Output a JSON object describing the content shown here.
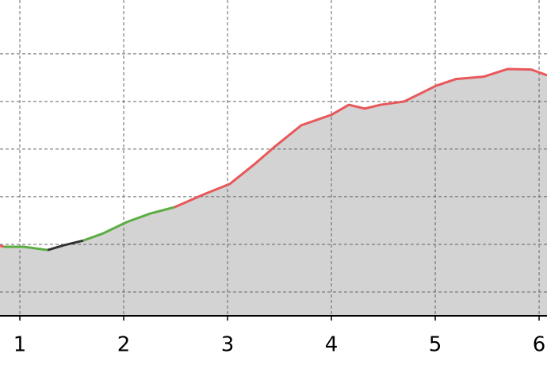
{
  "chart_data": {
    "type": "line",
    "xlim": [
      0.809,
      6.076
    ],
    "ylim": [
      0.5,
      7.13
    ],
    "xticks": [
      1,
      2,
      3,
      4,
      5,
      6
    ],
    "yticks": [
      1,
      2,
      3,
      4,
      5,
      6
    ],
    "grid": true,
    "fill_color": "#d3d3d3",
    "series": [
      {
        "color": "#e8585a",
        "x": [
          0.809,
          0.847
        ],
        "values": [
          1.97,
          1.95
        ]
      },
      {
        "color": "#5cad44",
        "x": [
          0.847,
          1.038,
          1.267
        ],
        "values": [
          1.95,
          1.95,
          1.88
        ]
      },
      {
        "color": "#333333",
        "x": [
          1.267,
          1.42,
          1.611
        ],
        "values": [
          1.88,
          1.98,
          2.08
        ]
      },
      {
        "color": "#5cad44",
        "x": [
          1.611,
          1.802,
          2.031,
          2.26,
          2.489
        ],
        "values": [
          2.08,
          2.23,
          2.47,
          2.65,
          2.78
        ]
      },
      {
        "color": "#e8585a",
        "x": [
          2.489,
          2.794,
          3.023,
          3.252,
          3.443,
          3.71,
          4.0,
          4.168,
          4.321,
          4.473,
          4.702,
          5.008,
          5.198,
          5.466,
          5.695,
          5.924,
          6.076
        ],
        "values": [
          2.78,
          3.07,
          3.27,
          3.67,
          4.03,
          4.5,
          4.72,
          4.93,
          4.85,
          4.93,
          5.0,
          5.33,
          5.47,
          5.52,
          5.68,
          5.67,
          5.55
        ]
      }
    ]
  }
}
